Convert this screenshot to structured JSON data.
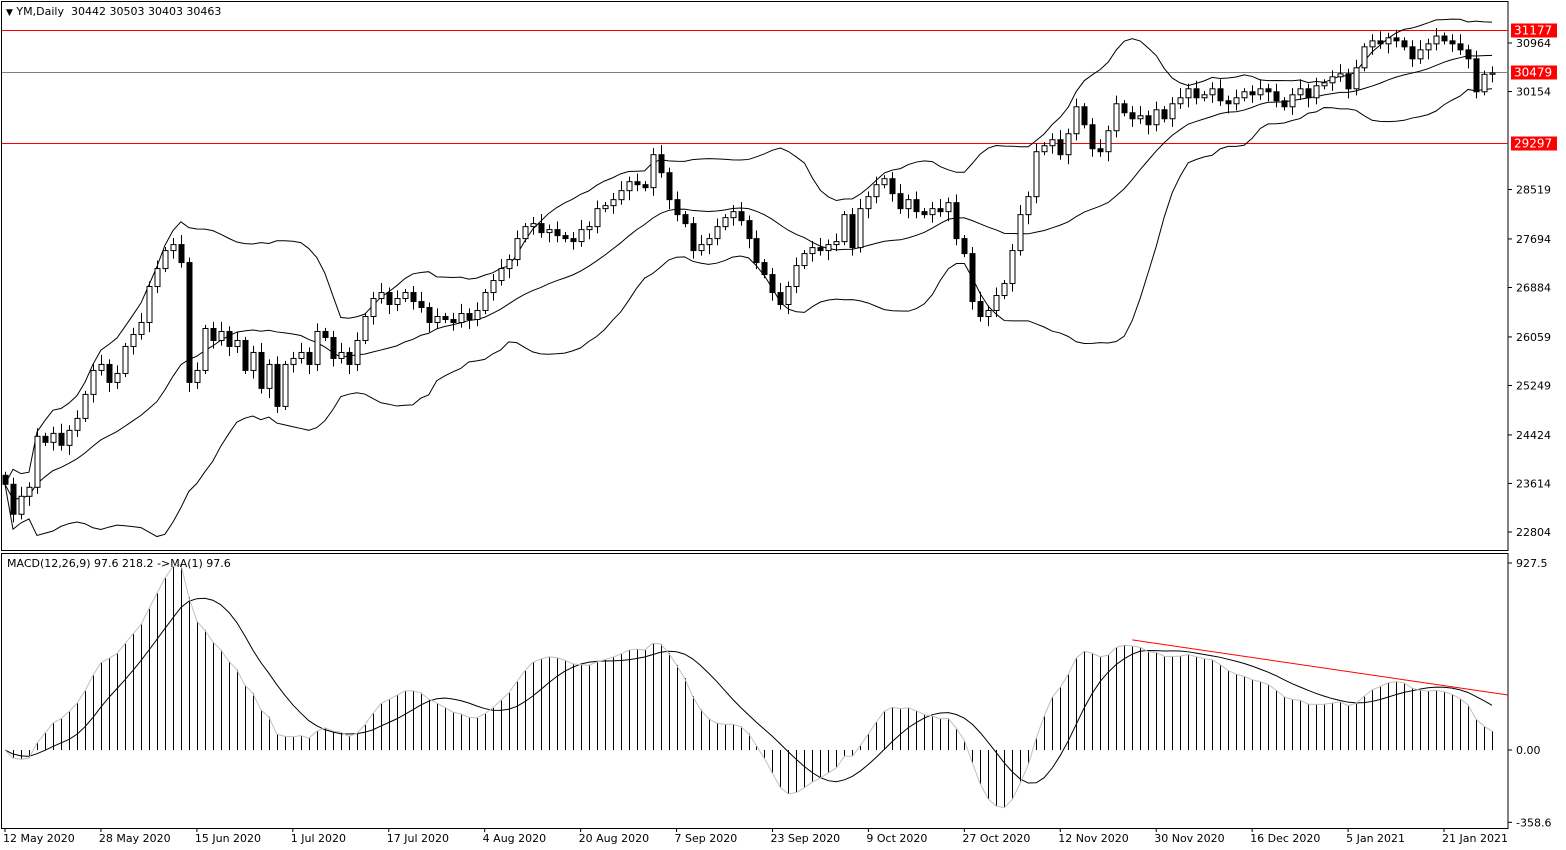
{
  "header": {
    "symbol": "YM,Daily",
    "ohlc": "30442 30503 30403 30463"
  },
  "indicator_label": "MACD(12,26,9) 97.6 218.2 ->MA(1) 97.6",
  "colors": {
    "levels": "#ff0000",
    "bid_line": "#808080",
    "candles": "#000000",
    "background": "#ffffff"
  },
  "chart_data": [
    {
      "type": "candlestick",
      "title": "YM,Daily",
      "price_ticks": [
        30964,
        30154,
        28519,
        27694,
        26884,
        26059,
        25249,
        24424,
        23614,
        22804
      ],
      "ylim": [
        22400,
        31600
      ],
      "levels": [
        {
          "value": 31177,
          "label": "31177",
          "color": "#ff0000"
        },
        {
          "value": 30479,
          "label": "30479",
          "color": "#808080"
        },
        {
          "value": 29297,
          "label": "29297",
          "color": "#ff0000"
        }
      ],
      "overlay": "Bollinger Bands (20)",
      "x_ticks": [
        {
          "bar": 0,
          "label": "12 May 2020"
        },
        {
          "bar": 12,
          "label": "28 May 2020"
        },
        {
          "bar": 24,
          "label": "15 Jun 2020"
        },
        {
          "bar": 36,
          "label": "1 Jul 2020"
        },
        {
          "bar": 48,
          "label": "17 Jul 2020"
        },
        {
          "bar": 60,
          "label": "4 Aug 2020"
        },
        {
          "bar": 72,
          "label": "20 Aug 2020"
        },
        {
          "bar": 84,
          "label": "7 Sep 2020"
        },
        {
          "bar": 96,
          "label": "23 Sep 2020"
        },
        {
          "bar": 108,
          "label": "9 Oct 2020"
        },
        {
          "bar": 120,
          "label": "27 Oct 2020"
        },
        {
          "bar": 132,
          "label": "12 Nov 2020"
        },
        {
          "bar": 144,
          "label": "30 Nov 2020"
        },
        {
          "bar": 156,
          "label": "16 Dec 2020"
        },
        {
          "bar": 168,
          "label": "5 Jan 2021"
        },
        {
          "bar": 180,
          "label": "21 Jan 2021"
        }
      ],
      "closes": [
        23600,
        23100,
        23400,
        23550,
        24400,
        24300,
        24450,
        24250,
        24500,
        24700,
        25100,
        25500,
        25600,
        25300,
        25450,
        25900,
        26100,
        26300,
        26900,
        27200,
        27500,
        27600,
        27300,
        25300,
        25500,
        26200,
        26000,
        26150,
        25900,
        26000,
        25500,
        25800,
        25200,
        25600,
        24900,
        25600,
        25700,
        25800,
        25600,
        26150,
        26050,
        25700,
        25800,
        25600,
        26000,
        26400,
        26700,
        26800,
        26600,
        26700,
        26800,
        26650,
        26550,
        26300,
        26400,
        26350,
        26300,
        26450,
        26350,
        26500,
        26800,
        27000,
        27200,
        27350,
        27700,
        27900,
        27950,
        27800,
        27850,
        27750,
        27700,
        27650,
        27850,
        27900,
        28200,
        28250,
        28350,
        28500,
        28650,
        28600,
        28550,
        29100,
        28800,
        28350,
        28100,
        27950,
        27500,
        27600,
        27700,
        27900,
        28050,
        28150,
        28000,
        27700,
        27300,
        27100,
        26800,
        26600,
        26900,
        27250,
        27450,
        27550,
        27500,
        27600,
        27650,
        28100,
        27550,
        28200,
        28400,
        28600,
        28700,
        28450,
        28200,
        28350,
        28150,
        28100,
        28200,
        28150,
        28300,
        27700,
        27450,
        26650,
        26400,
        26500,
        26750,
        26950,
        27500,
        28100,
        28400,
        29150,
        29250,
        29350,
        29100,
        29450,
        29900,
        29600,
        29200,
        29150,
        29500,
        29950,
        29800,
        29700,
        29750,
        29600,
        29850,
        29700,
        29950,
        30050,
        30200,
        30050,
        30100,
        30200,
        30000,
        29950,
        30050,
        30150,
        30100,
        30200,
        30150,
        30000,
        29900,
        30100,
        30200,
        30050,
        30250,
        30300,
        30400,
        30450,
        30200,
        30550,
        30900,
        31000,
        30950,
        31050,
        31000,
        30900,
        30700,
        30850,
        30950,
        31080,
        31000,
        30950,
        30850,
        30700,
        30150,
        30442,
        30463
      ]
    },
    {
      "type": "bar+line",
      "title": "MACD(12,26,9)",
      "ticks": [
        927.5,
        0.0,
        -358.6
      ],
      "tick_labels": [
        "927.5",
        "0.00",
        "-358.6"
      ],
      "ylim": [
        -358.6,
        927.5
      ],
      "macd": 97.6,
      "signal": 218.2,
      "ma": 97.6,
      "trendline": {
        "from": {
          "bar": 141,
          "value": 546
        },
        "to": {
          "bar": 188,
          "value": 273
        },
        "color": "#ff0000"
      }
    }
  ]
}
